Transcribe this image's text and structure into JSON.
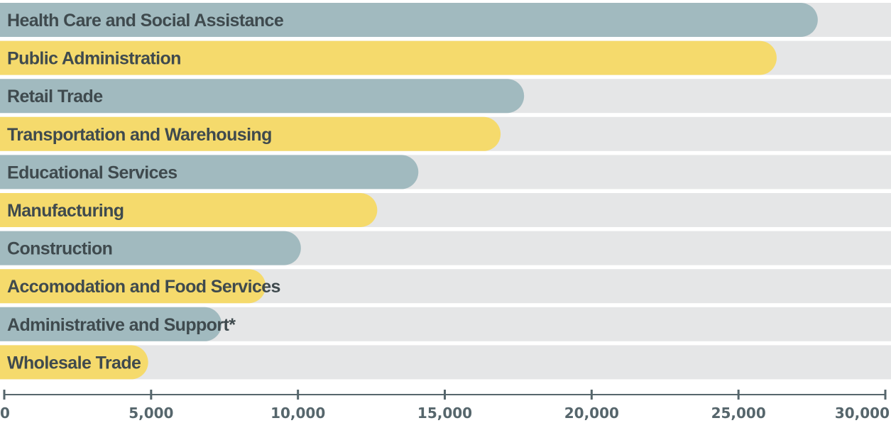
{
  "chart_data": {
    "type": "bar",
    "orientation": "horizontal",
    "title": "",
    "xlabel": "",
    "ylabel": "",
    "categories": [
      "Health Care and Social Assistance",
      "Public Administration",
      "Retail Trade",
      "Transportation and Warehousing",
      "Educational Services",
      "Manufacturing",
      "Construction",
      "Accomodation and Food Services",
      "Administrative and Support*",
      "Wholesale Trade"
    ],
    "values": [
      27700,
      26300,
      17700,
      16900,
      14100,
      12700,
      10100,
      8900,
      7400,
      4900
    ],
    "xlim": [
      0,
      30000
    ],
    "xticks": [
      0,
      5000,
      10000,
      15000,
      20000,
      25000,
      30000
    ],
    "xtick_labels": [
      "0",
      "5,000",
      "10,000",
      "15,000",
      "20,000",
      "25,000",
      "30,000"
    ],
    "grid": false,
    "legend": "none",
    "colors": {
      "bar_a": "#a1babf",
      "bar_b": "#f5da6c",
      "track": "#e5e6e7",
      "axis": "#56666c",
      "label": "#3f4a4e"
    }
  }
}
